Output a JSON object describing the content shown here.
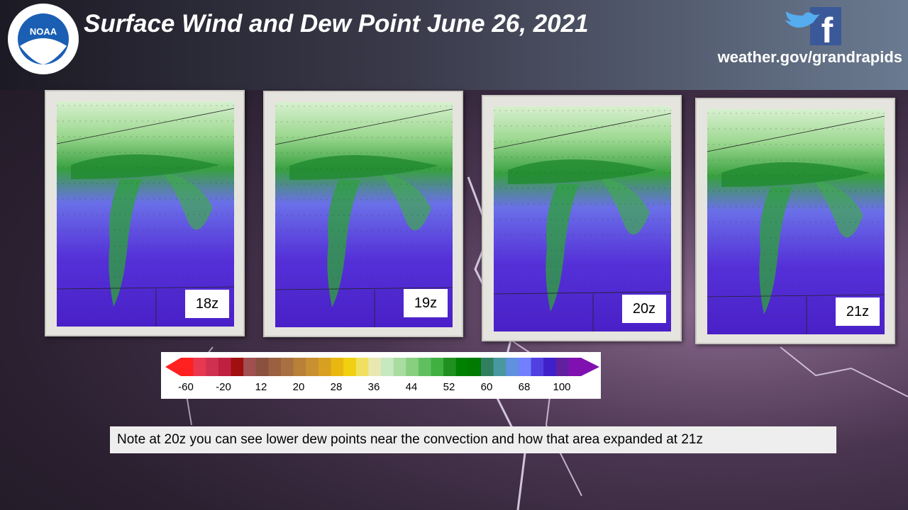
{
  "header": {
    "title": "Surface Wind and Dew Point June 26, 2021",
    "logo": "NOAA",
    "site": "weather.gov/grandrapids"
  },
  "panels": [
    {
      "label": "18z"
    },
    {
      "label": "19z"
    },
    {
      "label": "20z"
    },
    {
      "label": "21z"
    }
  ],
  "colorbar": {
    "ticks": [
      -60,
      -20,
      12,
      20,
      28,
      36,
      44,
      52,
      60,
      68,
      100
    ],
    "colors": [
      "#ff2020",
      "#e83850",
      "#d03050",
      "#c02040",
      "#a01010",
      "#a05050",
      "#8a5040",
      "#9a6040",
      "#a87040",
      "#b88038",
      "#c89030",
      "#d8a020",
      "#e8b810",
      "#f0d010",
      "#f0e060",
      "#e8e8b0",
      "#c8e8c0",
      "#a8dca0",
      "#88d080",
      "#60c060",
      "#40b040",
      "#209020",
      "#008000",
      "#007a00",
      "#308060",
      "#4898a0",
      "#6090e0",
      "#7080ff",
      "#5040e0",
      "#4020c8",
      "#6020a0",
      "#8010b0"
    ]
  },
  "note": "Note at 20z  you can see lower dew points near the convection and how that area expanded at 21z"
}
